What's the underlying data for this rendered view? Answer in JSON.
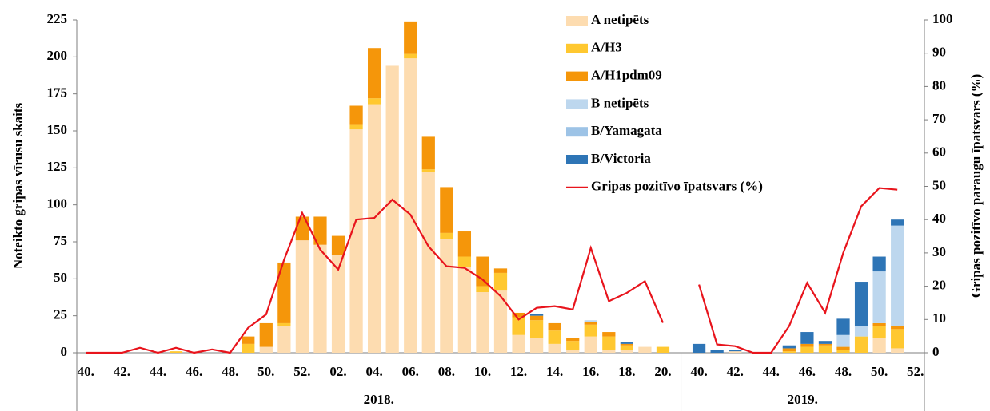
{
  "chart_data": {
    "type": "bar",
    "stacked": true,
    "ylabel": "Noteikto gripas vīrusu skaits",
    "y2label": "Gripas pozitīvo paraugu īpatsvars (%)",
    "groups": [
      {
        "label": "2018.",
        "categories": [
          "40.",
          null,
          "42.",
          null,
          "44.",
          null,
          "46.",
          null,
          "48.",
          null,
          "50.",
          null,
          "52.",
          null,
          "02.",
          null,
          "04.",
          null,
          "06.",
          null,
          "08.",
          null,
          "10.",
          null,
          "12.",
          null,
          "14.",
          null,
          "16.",
          null,
          "18.",
          null,
          "20."
        ]
      },
      {
        "label": "2019.",
        "categories": [
          "40.",
          null,
          "42.",
          null,
          "44.",
          null,
          "46.",
          null,
          "48.",
          null,
          "50.",
          null,
          "52."
        ]
      }
    ],
    "ylim": [
      0,
      225
    ],
    "yticks": [
      0,
      25,
      50,
      75,
      100,
      125,
      150,
      175,
      200,
      225
    ],
    "y2lim": [
      0,
      100
    ],
    "y2ticks": [
      0,
      10,
      20,
      30,
      40,
      50,
      60,
      70,
      80,
      90,
      100
    ],
    "series": [
      {
        "name": "A netipēts",
        "color": "#fddcb0",
        "values": [
          0,
          0,
          0,
          0,
          0,
          0,
          0,
          0,
          0,
          0,
          4,
          18,
          76,
          73,
          66,
          151,
          168,
          194,
          199,
          122,
          77,
          58,
          41,
          42,
          12,
          10,
          6,
          2,
          11,
          2,
          2,
          4,
          0,
          0,
          0,
          1,
          0,
          0,
          0,
          0,
          0,
          0,
          0,
          10,
          3,
          null
        ]
      },
      {
        "name": "A/H3",
        "color": "#ffc830",
        "values": [
          0,
          0,
          0,
          0,
          0,
          1,
          0,
          0,
          0,
          6,
          0,
          2,
          0,
          0,
          0,
          3,
          4,
          0,
          3,
          2,
          4,
          7,
          4,
          12,
          12,
          12,
          9,
          6,
          8,
          9,
          3,
          0,
          4,
          0,
          0,
          0,
          0,
          0,
          1,
          4,
          5,
          2,
          11,
          8,
          13,
          null
        ]
      },
      {
        "name": "A/H1pdm09",
        "color": "#f5960a",
        "values": [
          0,
          0,
          0,
          0,
          0,
          0,
          0,
          0,
          0,
          5,
          16,
          41,
          16,
          19,
          13,
          13,
          34,
          0,
          22,
          22,
          31,
          17,
          20,
          3,
          3,
          3,
          5,
          2,
          2,
          3,
          1,
          0,
          0,
          0,
          0,
          0,
          0,
          0,
          2,
          2,
          1,
          2,
          0,
          2,
          2,
          null
        ]
      },
      {
        "name": "B netipēts",
        "color": "#bdd7ee",
        "values": [
          0,
          0,
          0,
          0,
          0,
          0,
          0,
          0,
          0,
          0,
          0,
          0,
          0,
          0,
          0,
          0,
          0,
          0,
          0,
          0,
          0,
          0,
          0,
          0,
          0,
          0,
          0,
          0,
          1,
          0,
          0,
          0,
          0,
          0,
          0,
          0,
          0,
          0,
          0,
          0,
          0,
          8,
          7,
          35,
          68,
          null
        ]
      },
      {
        "name": "B/Yamagata",
        "color": "#9dc3e6",
        "values": [
          0,
          0,
          0,
          0,
          0,
          0,
          0,
          0,
          0,
          0,
          0,
          0,
          0,
          0,
          0,
          0,
          0,
          0,
          0,
          0,
          0,
          0,
          0,
          0,
          0,
          0,
          0,
          0,
          0,
          0,
          0,
          0,
          0,
          0,
          0,
          0,
          0,
          0,
          0,
          0,
          0,
          0,
          0,
          0,
          0,
          null
        ]
      },
      {
        "name": "B/Victoria",
        "color": "#2e75b6",
        "values": [
          0,
          0,
          0,
          0,
          0,
          0,
          0,
          0,
          0,
          0,
          0,
          0,
          0,
          0,
          0,
          0,
          0,
          0,
          0,
          0,
          0,
          0,
          0,
          0,
          0,
          1,
          0,
          0,
          0,
          0,
          1,
          0,
          0,
          6,
          2,
          1,
          0,
          0,
          2,
          8,
          2,
          11,
          30,
          10,
          4,
          null
        ]
      },
      {
        "name": "Gripas pozitīvo īpatsvars (%)",
        "color": "#e8141c",
        "type": "line",
        "axis": "y2",
        "values": [
          0,
          0,
          0,
          1.5,
          0,
          1.5,
          0,
          1,
          0,
          7.5,
          11.5,
          28,
          42,
          31,
          25,
          40,
          40.5,
          46,
          41.5,
          32,
          26,
          25.5,
          22,
          17,
          10,
          13.5,
          14,
          13,
          31.5,
          15.5,
          18,
          21.5,
          9,
          20.5,
          2.5,
          2,
          0,
          0,
          8,
          21,
          12,
          30,
          44,
          49.5,
          49,
          null
        ]
      }
    ]
  }
}
